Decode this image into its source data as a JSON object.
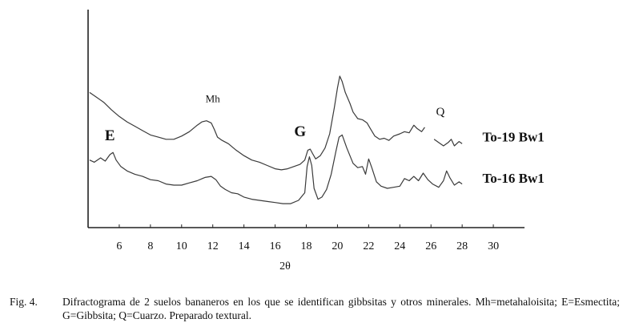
{
  "chart_data": {
    "type": "line",
    "xlabel": "2θ",
    "xlim": [
      4,
      32
    ],
    "x_ticks": [
      6,
      8,
      10,
      12,
      14,
      16,
      18,
      20,
      22,
      24,
      26,
      28,
      30
    ],
    "series": [
      {
        "name": "To-19 Bw1",
        "points": [
          [
            4.1,
            62.0
          ],
          [
            4.5,
            60.0
          ],
          [
            5.0,
            57.5
          ],
          [
            5.5,
            54.0
          ],
          [
            6.0,
            51.0
          ],
          [
            6.5,
            48.5
          ],
          [
            7.0,
            46.5
          ],
          [
            7.5,
            44.5
          ],
          [
            8.0,
            42.5
          ],
          [
            8.5,
            41.5
          ],
          [
            9.0,
            40.5
          ],
          [
            9.5,
            40.5
          ],
          [
            10.0,
            42.0
          ],
          [
            10.5,
            44.0
          ],
          [
            11.0,
            47.0
          ],
          [
            11.3,
            48.5
          ],
          [
            11.6,
            49.0
          ],
          [
            11.9,
            48.0
          ],
          [
            12.1,
            45.0
          ],
          [
            12.3,
            41.5
          ],
          [
            12.6,
            40.0
          ],
          [
            13.0,
            38.5
          ],
          [
            13.5,
            35.5
          ],
          [
            14.0,
            33.0
          ],
          [
            14.5,
            31.0
          ],
          [
            15.0,
            30.0
          ],
          [
            15.5,
            28.5
          ],
          [
            16.0,
            27.0
          ],
          [
            16.4,
            26.5
          ],
          [
            16.8,
            27.0
          ],
          [
            17.2,
            28.0
          ],
          [
            17.6,
            29.0
          ],
          [
            17.9,
            31.0
          ],
          [
            18.1,
            35.5
          ],
          [
            18.25,
            36.0
          ],
          [
            18.4,
            34.0
          ],
          [
            18.6,
            31.5
          ],
          [
            18.9,
            33.0
          ],
          [
            19.2,
            36.5
          ],
          [
            19.5,
            43.0
          ],
          [
            19.8,
            55.0
          ],
          [
            20.0,
            64.0
          ],
          [
            20.15,
            69.5
          ],
          [
            20.3,
            67.0
          ],
          [
            20.5,
            62.0
          ],
          [
            20.8,
            57.0
          ],
          [
            21.0,
            53.0
          ],
          [
            21.3,
            50.0
          ],
          [
            21.6,
            49.5
          ],
          [
            21.9,
            48.0
          ],
          [
            22.1,
            45.5
          ],
          [
            22.4,
            42.0
          ],
          [
            22.7,
            40.5
          ],
          [
            23.0,
            41.0
          ],
          [
            23.3,
            40.0
          ],
          [
            23.6,
            42.0
          ],
          [
            24.0,
            43.0
          ],
          [
            24.3,
            44.0
          ],
          [
            24.6,
            43.5
          ],
          [
            24.9,
            47.0
          ],
          [
            25.1,
            45.5
          ],
          [
            25.4,
            44.0
          ],
          [
            25.6,
            46.0
          ]
        ]
      },
      {
        "name": "To-19 Bw1 (Q)",
        "points": [
          [
            26.2,
            40.5
          ],
          [
            26.5,
            39.0
          ],
          [
            26.8,
            37.5
          ],
          [
            27.1,
            39.0
          ],
          [
            27.3,
            40.5
          ],
          [
            27.5,
            37.5
          ],
          [
            27.8,
            39.5
          ],
          [
            28.0,
            38.5
          ]
        ]
      },
      {
        "name": "To-16 Bw1",
        "points": [
          [
            4.1,
            31.0
          ],
          [
            4.4,
            30.0
          ],
          [
            4.8,
            32.0
          ],
          [
            5.1,
            30.5
          ],
          [
            5.4,
            33.5
          ],
          [
            5.6,
            34.5
          ],
          [
            5.8,
            31.0
          ],
          [
            6.1,
            28.0
          ],
          [
            6.5,
            26.0
          ],
          [
            7.0,
            24.5
          ],
          [
            7.5,
            23.5
          ],
          [
            8.0,
            22.0
          ],
          [
            8.5,
            21.5
          ],
          [
            9.0,
            20.0
          ],
          [
            9.5,
            19.5
          ],
          [
            10.0,
            19.5
          ],
          [
            10.5,
            20.5
          ],
          [
            11.0,
            21.5
          ],
          [
            11.5,
            23.0
          ],
          [
            11.9,
            23.5
          ],
          [
            12.2,
            22.0
          ],
          [
            12.5,
            19.0
          ],
          [
            12.8,
            17.5
          ],
          [
            13.2,
            16.0
          ],
          [
            13.6,
            15.5
          ],
          [
            14.0,
            14.0
          ],
          [
            14.5,
            13.0
          ],
          [
            15.0,
            12.5
          ],
          [
            15.5,
            12.0
          ],
          [
            16.0,
            11.5
          ],
          [
            16.5,
            11.0
          ],
          [
            17.0,
            11.0
          ],
          [
            17.5,
            12.5
          ],
          [
            17.9,
            16.0
          ],
          [
            18.05,
            28.0
          ],
          [
            18.2,
            32.5
          ],
          [
            18.35,
            28.5
          ],
          [
            18.5,
            18.0
          ],
          [
            18.75,
            13.0
          ],
          [
            19.0,
            14.0
          ],
          [
            19.3,
            17.5
          ],
          [
            19.6,
            24.5
          ],
          [
            19.9,
            35.0
          ],
          [
            20.1,
            41.5
          ],
          [
            20.3,
            42.5
          ],
          [
            20.6,
            36.5
          ],
          [
            21.0,
            29.5
          ],
          [
            21.3,
            27.5
          ],
          [
            21.6,
            28.0
          ],
          [
            21.8,
            24.5
          ],
          [
            22.0,
            31.5
          ],
          [
            22.2,
            27.5
          ],
          [
            22.5,
            21.0
          ],
          [
            22.8,
            19.0
          ],
          [
            23.2,
            18.0
          ],
          [
            23.6,
            18.5
          ],
          [
            24.0,
            19.0
          ],
          [
            24.3,
            22.5
          ],
          [
            24.6,
            21.5
          ],
          [
            24.9,
            23.5
          ],
          [
            25.2,
            21.5
          ],
          [
            25.5,
            25.0
          ],
          [
            25.8,
            22.0
          ],
          [
            26.1,
            20.0
          ],
          [
            26.5,
            18.5
          ],
          [
            26.8,
            21.5
          ],
          [
            27.0,
            26.0
          ],
          [
            27.2,
            23.0
          ],
          [
            27.5,
            19.5
          ],
          [
            27.8,
            21.0
          ],
          [
            28.0,
            20.0
          ]
        ]
      }
    ],
    "annotations": [
      {
        "text": "E",
        "x": 5.4,
        "y": 40.0
      },
      {
        "text": "Mh",
        "x": 12.0,
        "y": 57.5
      },
      {
        "text": "G",
        "x": 17.6,
        "y": 42.0
      },
      {
        "text": "Q",
        "x": 26.6,
        "y": 51.5
      },
      {
        "text": "To-19 Bw1",
        "x": 29.3,
        "y": 39.5
      },
      {
        "text": "To-16 Bw1",
        "x": 29.3,
        "y": 20.5
      }
    ],
    "grid": false,
    "legend": "none"
  },
  "caption": {
    "label": "Fig. 4.",
    "text": "Difractograma de 2 suelos bananeros en los que se identifican gibbsitas y otros minerales. Mh=metahaloisita; E=Esmectita; G=Gibbsita; Q=Cuarzo. Preparado textural."
  }
}
